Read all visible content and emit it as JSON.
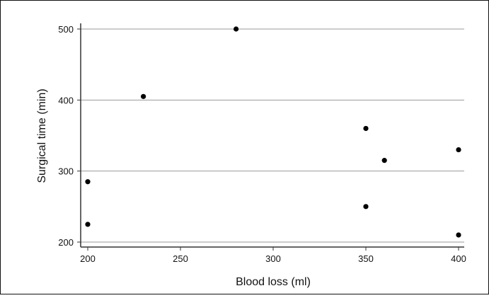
{
  "chart_data": {
    "type": "scatter",
    "title": "",
    "xlabel": "Blood loss (ml)",
    "ylabel": "Surgical time (min)",
    "xlim": [
      198,
      402
    ],
    "ylim": [
      195,
      510
    ],
    "xticks": [
      200,
      250,
      300,
      350,
      400
    ],
    "yticks": [
      200,
      300,
      400,
      500
    ],
    "xtick_labels": [
      "200",
      "250",
      "300",
      "350",
      "400"
    ],
    "ytick_labels": [
      "200",
      "300",
      "400",
      "500"
    ],
    "grid": "horizontal",
    "series": [
      {
        "points": [
          {
            "x": 200,
            "y": 285
          },
          {
            "x": 200,
            "y": 225
          },
          {
            "x": 230,
            "y": 405
          },
          {
            "x": 280,
            "y": 500
          },
          {
            "x": 350,
            "y": 360
          },
          {
            "x": 350,
            "y": 250
          },
          {
            "x": 360,
            "y": 315
          },
          {
            "x": 400,
            "y": 330
          },
          {
            "x": 400,
            "y": 210
          }
        ]
      }
    ],
    "colors": {
      "border": "#111111",
      "axis": "#333333",
      "grid": "#999999",
      "marker": "#000000"
    }
  }
}
